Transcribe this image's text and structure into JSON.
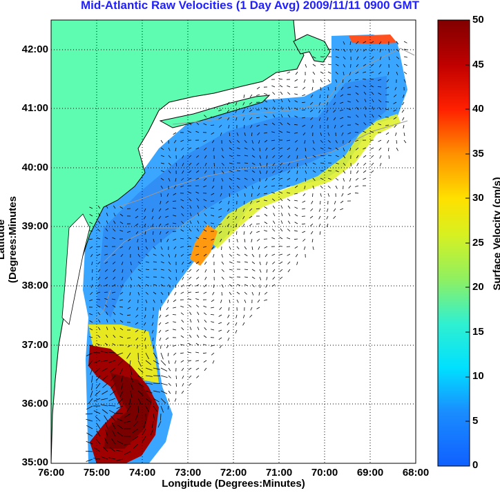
{
  "title": "Mid-Atlantic Raw Velocities (1 Day Avg) 2009/11/11 0900 GMT",
  "xlabel": "Longitude (Degrees:Minutes)",
  "ylabel": "Latitude (Degrees:Minutes",
  "colorbar_label": "Surface Velocity (cm/s)",
  "chart_data": {
    "type": "heatmap",
    "x_ticks": [
      "76:00",
      "75:00",
      "74:00",
      "73:00",
      "72:00",
      "71:00",
      "70:00",
      "69:00",
      "68:00"
    ],
    "y_ticks": [
      "42:00",
      "41:00",
      "40:00",
      "39:00",
      "38:00",
      "37:00",
      "36:00",
      "35:00"
    ],
    "xlim": [
      -76,
      -68
    ],
    "ylim": [
      35,
      42.5
    ],
    "colorbar_ticks": [
      "0",
      "5",
      "10",
      "15",
      "20",
      "25",
      "30",
      "35",
      "40",
      "45",
      "50"
    ],
    "clim": [
      0,
      50
    ],
    "grid": "dotted",
    "land_color": "#5dfcb0"
  }
}
